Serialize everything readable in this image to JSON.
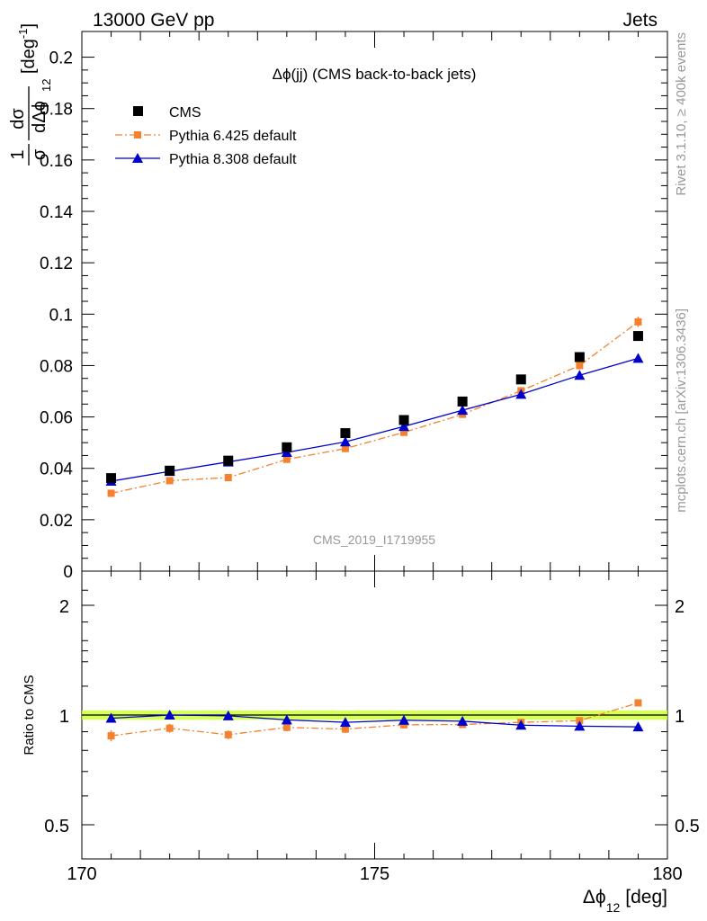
{
  "header": {
    "left": "13000 GeV pp",
    "right": "Jets"
  },
  "side_labels": {
    "rivet": "Rivet 3.1.10, ≥ 400k events",
    "mcplots": "mcplots.cern.ch [arXiv:1306.3436]"
  },
  "chart_data": {
    "type": "scatter",
    "title": "Δϕ(jj) (CMS back-to-back jets)",
    "analysis_id": "CMS_2019_I1719955",
    "xlabel": "Δϕ",
    "xlabel_sub": "12",
    "xlabel_unit": "[deg]",
    "ylabel_numerator": "1",
    "ylabel_frac_top": "dσ",
    "ylabel_left": "σ",
    "ylabel_denominator": "dΔϕ",
    "ylabel_sub": "12",
    "ylabel_unit": "[deg",
    "ylabel_unit_exp": "-1",
    "ylabel_unit_close": "]",
    "ratio_ylabel": "Ratio to CMS",
    "xlim": [
      170,
      180
    ],
    "ylim": [
      0,
      0.21
    ],
    "ratio_ylim": [
      0.5,
      2.0
    ],
    "x_ticks": [
      "170",
      "175",
      "180"
    ],
    "y_ticks": [
      "0",
      "0.02",
      "0.04",
      "0.06",
      "0.08",
      "0.1",
      "0.12",
      "0.14",
      "0.16",
      "0.18",
      "0.2"
    ],
    "ratio_ticks": [
      "0.5",
      "1",
      "2"
    ],
    "x": [
      170.5,
      171.5,
      172.5,
      173.5,
      174.5,
      175.5,
      176.5,
      177.5,
      178.5,
      179.5
    ],
    "series": [
      {
        "name": "CMS",
        "color": "#000000",
        "marker": "square",
        "values": [
          0.0362,
          0.0391,
          0.043,
          0.0482,
          0.0537,
          0.0588,
          0.066,
          0.0746,
          0.0833,
          0.0915
        ]
      },
      {
        "name": "Pythia 6.425 default",
        "color": "#f5812f",
        "marker": "small-square",
        "line": "dashdot",
        "values": [
          0.0303,
          0.0352,
          0.0364,
          0.0435,
          0.0477,
          0.054,
          0.061,
          0.0702,
          0.08,
          0.097
        ],
        "errors": [
          0.0012,
          0.001,
          0.001,
          0.001,
          0.0011,
          0.0011,
          0.0012,
          0.0014,
          0.0015,
          0.002
        ],
        "ratio": [
          0.877,
          0.92,
          0.883,
          0.925,
          0.915,
          0.94,
          0.942,
          0.955,
          0.965,
          1.08
        ],
        "ratio_errors": [
          0.03,
          0.026,
          0.024,
          0.022,
          0.022,
          0.02,
          0.02,
          0.02,
          0.018,
          0.022
        ]
      },
      {
        "name": "Pythia 8.308 default",
        "color": "#0000cc",
        "marker": "triangle",
        "line": "solid",
        "values": [
          0.035,
          0.0388,
          0.0425,
          0.0462,
          0.0503,
          0.0563,
          0.0626,
          0.0688,
          0.0762,
          0.0828
        ],
        "ratio": [
          0.98,
          1.0,
          0.995,
          0.97,
          0.955,
          0.968,
          0.962,
          0.938,
          0.932,
          0.928
        ]
      }
    ],
    "ratio_band_color": "#ccff33",
    "legend": "top-left",
    "grid": false
  }
}
